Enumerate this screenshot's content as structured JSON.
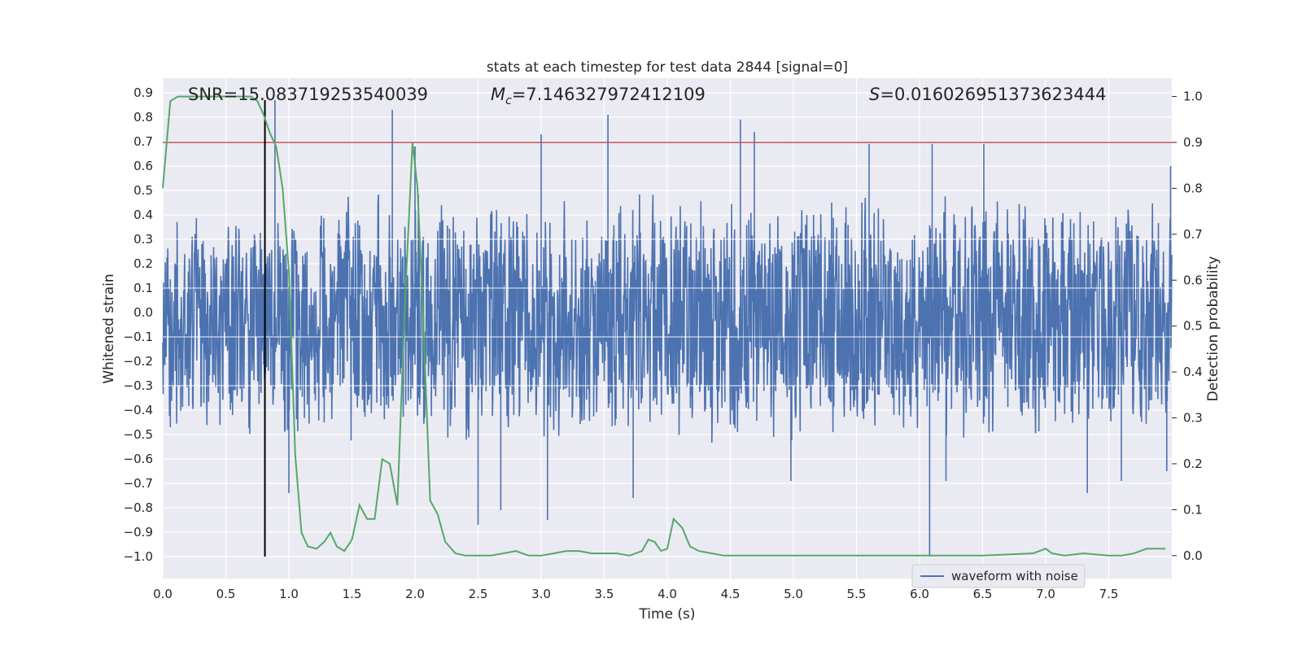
{
  "chart_data": {
    "type": "line",
    "title": "stats at each timestep for test data 2844 [signal=0]",
    "xlabel": "Time (s)",
    "ylabel_left": "Whitened strain",
    "ylabel_right": "Detection probability",
    "xlim": [
      0,
      8
    ],
    "ylim_left": [
      -1.09,
      0.96
    ],
    "ylim_right": [
      -0.05,
      1.04
    ],
    "x_ticks": [
      "0.0",
      "0.5",
      "1.0",
      "1.5",
      "2.0",
      "2.5",
      "3.0",
      "3.5",
      "4.0",
      "4.5",
      "5.0",
      "5.5",
      "6.0",
      "6.5",
      "7.0",
      "7.5"
    ],
    "y_ticks_left": [
      "0.9",
      "0.8",
      "0.7",
      "0.6",
      "0.5",
      "0.4",
      "0.3",
      "0.2",
      "0.1",
      "0.0",
      "-0.1",
      "-0.2",
      "-0.3",
      "-0.4",
      "-0.5",
      "-0.6",
      "-0.7",
      "-0.8",
      "-0.9",
      "-1.0"
    ],
    "y_ticks_right": [
      "1.0",
      "0.9",
      "0.8",
      "0.7",
      "0.6",
      "0.5",
      "0.4",
      "0.3",
      "0.2",
      "0.1",
      "0.0"
    ],
    "grid": true,
    "legend_position": "lower right",
    "annotations": {
      "snr": "SNR=15.083719253540039",
      "mc": "=7.146327972412109",
      "mc_symbol": "M",
      "mc_subscript": "c",
      "s": "=0.016026951373623444",
      "s_symbol": "S"
    },
    "series": [
      {
        "name": "waveform with noise",
        "axis": "left",
        "color": "#4c72b0",
        "envelope_upper": [
          [
            0.0,
            0.38
          ],
          [
            0.5,
            0.46
          ],
          [
            1.0,
            0.45
          ],
          [
            1.5,
            0.5
          ],
          [
            2.0,
            0.52
          ],
          [
            2.5,
            0.5
          ],
          [
            3.0,
            0.48
          ],
          [
            3.5,
            0.48
          ],
          [
            4.0,
            0.5
          ],
          [
            4.5,
            0.5
          ],
          [
            5.0,
            0.48
          ],
          [
            5.5,
            0.5
          ],
          [
            6.0,
            0.48
          ],
          [
            6.5,
            0.5
          ],
          [
            7.0,
            0.5
          ],
          [
            7.5,
            0.48
          ],
          [
            8.0,
            0.48
          ]
        ],
        "envelope_lower": [
          [
            0.0,
            -0.45
          ],
          [
            0.5,
            -0.52
          ],
          [
            1.0,
            -0.52
          ],
          [
            1.5,
            -0.55
          ],
          [
            2.0,
            -0.55
          ],
          [
            2.5,
            -0.55
          ],
          [
            3.0,
            -0.55
          ],
          [
            3.5,
            -0.55
          ],
          [
            4.0,
            -0.55
          ],
          [
            4.5,
            -0.55
          ],
          [
            5.0,
            -0.55
          ],
          [
            5.5,
            -0.55
          ],
          [
            6.0,
            -0.55
          ],
          [
            6.5,
            -0.55
          ],
          [
            7.0,
            -0.55
          ],
          [
            7.5,
            -0.55
          ],
          [
            8.0,
            -0.5
          ]
        ],
        "peaks": [
          [
            0.89,
            0.87
          ],
          [
            1.82,
            0.83
          ],
          [
            2.0,
            0.68
          ],
          [
            3.0,
            0.73
          ],
          [
            3.53,
            0.81
          ],
          [
            4.58,
            0.79
          ],
          [
            4.69,
            0.74
          ],
          [
            5.6,
            0.69
          ],
          [
            6.1,
            0.69
          ],
          [
            6.51,
            0.69
          ],
          [
            7.99,
            0.6
          ],
          [
            0.06,
            -0.47
          ],
          [
            0.81,
            -0.53
          ],
          [
            1.0,
            -0.74
          ],
          [
            2.5,
            -0.87
          ],
          [
            2.68,
            -0.81
          ],
          [
            3.05,
            -0.85
          ],
          [
            3.73,
            -0.76
          ],
          [
            4.98,
            -0.69
          ],
          [
            6.08,
            -1.0
          ],
          [
            6.21,
            -0.69
          ],
          [
            7.33,
            -0.74
          ],
          [
            7.6,
            -0.69
          ],
          [
            7.96,
            -0.65
          ]
        ]
      },
      {
        "name": "detection probability",
        "axis": "right",
        "color": "#55a868",
        "x": [
          0.0,
          0.06,
          0.12,
          0.2,
          0.3,
          0.4,
          0.5,
          0.6,
          0.7,
          0.75,
          0.8,
          0.85,
          0.9,
          0.95,
          1.0,
          1.05,
          1.1,
          1.15,
          1.22,
          1.28,
          1.33,
          1.38,
          1.44,
          1.5,
          1.56,
          1.62,
          1.68,
          1.74,
          1.8,
          1.86,
          1.92,
          1.98,
          2.02,
          2.06,
          2.12,
          2.18,
          2.24,
          2.32,
          2.4,
          2.6,
          2.8,
          2.9,
          3.0,
          3.1,
          3.2,
          3.3,
          3.4,
          3.5,
          3.6,
          3.7,
          3.8,
          3.85,
          3.9,
          3.95,
          4.0,
          4.05,
          4.12,
          4.18,
          4.25,
          4.35,
          4.45,
          4.55,
          4.7,
          4.8,
          5.0,
          5.5,
          6.0,
          6.5,
          6.9,
          7.0,
          7.05,
          7.15,
          7.3,
          7.5,
          7.6,
          7.7,
          7.8,
          7.9,
          7.95
        ],
        "y": [
          0.8,
          0.99,
          1.0,
          1.0,
          1.0,
          1.0,
          1.0,
          1.0,
          1.0,
          0.99,
          0.96,
          0.92,
          0.89,
          0.8,
          0.62,
          0.22,
          0.05,
          0.02,
          0.015,
          0.03,
          0.05,
          0.02,
          0.01,
          0.035,
          0.11,
          0.08,
          0.08,
          0.21,
          0.2,
          0.11,
          0.55,
          0.9,
          0.8,
          0.55,
          0.12,
          0.09,
          0.03,
          0.005,
          0.0,
          0.0,
          0.01,
          0.0,
          0.0,
          0.005,
          0.01,
          0.01,
          0.005,
          0.005,
          0.005,
          0.0,
          0.01,
          0.035,
          0.03,
          0.01,
          0.015,
          0.08,
          0.06,
          0.02,
          0.01,
          0.005,
          0.0,
          0.0,
          0.0,
          0.0,
          0.0,
          0.0,
          0.0,
          0.0,
          0.005,
          0.015,
          0.005,
          0.0,
          0.005,
          0.0,
          0.0,
          0.005,
          0.015,
          0.015,
          0.015
        ]
      }
    ],
    "threshold": {
      "axis": "right",
      "value": 0.9,
      "color": "#c44e52"
    },
    "event_marker": {
      "axis": "left",
      "x": 0.81,
      "y_from": -1.0,
      "y_to": 0.87,
      "color": "#000000"
    }
  }
}
